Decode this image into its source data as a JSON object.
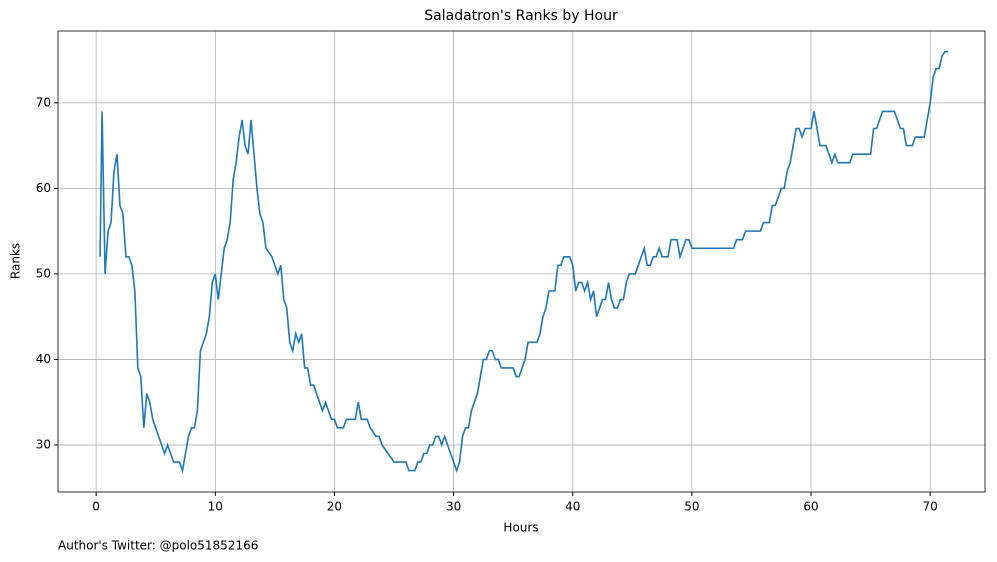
{
  "chart_data": {
    "type": "line",
    "title": "Saladatron's Ranks by Hour",
    "x_label": "Hours",
    "y_label": "Ranks",
    "footnote": "Author's Twitter: @polo51852166",
    "xlim": [
      -3.2,
      74.6
    ],
    "ylim": [
      24.5,
      78.4
    ],
    "xticks": [
      0,
      10,
      20,
      30,
      40,
      50,
      60,
      70
    ],
    "yticks": [
      30,
      40,
      50,
      60,
      70
    ],
    "grid": true,
    "x": [
      0.33,
      0.5,
      0.75,
      1,
      1.25,
      1.5,
      1.75,
      2,
      2.25,
      2.5,
      2.75,
      3,
      3.25,
      3.5,
      3.75,
      4,
      4.25,
      4.5,
      4.75,
      5,
      5.5,
      5.75,
      6,
      6.5,
      7,
      7.25,
      7.5,
      7.75,
      8,
      8.25,
      8.5,
      8.75,
      9,
      9.25,
      9.5,
      9.75,
      10,
      10.25,
      10.5,
      10.75,
      11,
      11.25,
      11.5,
      11.75,
      12,
      12.25,
      12.5,
      12.75,
      13,
      13.25,
      13.5,
      13.75,
      14,
      14.25,
      14.5,
      14.75,
      15,
      15.25,
      15.5,
      15.75,
      16,
      16.25,
      16.5,
      16.75,
      17,
      17.25,
      17.5,
      17.75,
      18,
      18.25,
      18.5,
      18.75,
      19,
      19.25,
      19.5,
      19.75,
      20,
      20.25,
      20.75,
      21,
      21.75,
      22,
      22.25,
      22.75,
      23,
      23.5,
      23.75,
      24,
      24.5,
      25,
      26,
      26.25,
      26.75,
      27,
      27.25,
      27.5,
      27.75,
      28,
      28.25,
      28.5,
      28.75,
      29,
      29.25,
      29.5,
      30,
      30.25,
      30.5,
      30.75,
      31,
      31.25,
      31.5,
      31.75,
      32,
      32.5,
      32.75,
      33,
      33.25,
      33.5,
      33.75,
      34,
      35,
      35.25,
      35.5,
      35.75,
      36,
      36.25,
      36.75,
      37,
      37.25,
      37.5,
      37.75,
      38,
      38.5,
      38.75,
      39,
      39.25,
      39.75,
      40,
      40.25,
      40.5,
      40.75,
      41,
      41.25,
      41.5,
      41.75,
      42,
      42.5,
      42.75,
      43,
      43.25,
      43.5,
      43.75,
      44,
      44.25,
      44.5,
      44.75,
      45.25,
      46,
      46.25,
      46.5,
      46.75,
      47,
      47.25,
      47.5,
      48,
      48.25,
      48.75,
      49,
      49.5,
      49.75,
      50,
      53.5,
      53.75,
      54.25,
      54.5,
      55.75,
      56,
      56.5,
      56.75,
      57,
      57.5,
      57.75,
      58,
      58.25,
      58.5,
      58.75,
      59,
      59.25,
      59.5,
      60,
      60.25,
      60.5,
      60.75,
      61.25,
      61.5,
      61.75,
      62,
      62.25,
      63.25,
      63.5,
      65,
      65.25,
      65.5,
      65.75,
      66,
      67,
      67.5,
      67.75,
      68,
      68.5,
      68.75,
      69.5,
      70,
      70.25,
      70.5,
      70.75,
      71,
      71.25,
      71.5
    ],
    "series": [
      {
        "name": "Ranks",
        "color": "#1f77b4",
        "values": [
          52,
          69,
          50,
          55,
          56,
          62,
          64,
          58,
          57,
          52,
          52,
          51,
          48,
          39,
          38,
          32,
          36,
          35,
          33,
          32,
          30,
          29,
          30,
          28,
          28,
          27,
          29,
          31,
          32,
          32,
          34,
          41,
          42,
          43,
          45,
          49,
          50,
          47,
          50,
          53,
          54,
          56,
          61,
          63,
          66,
          68,
          65,
          64,
          68,
          64,
          60,
          57,
          56,
          53,
          52.5,
          52,
          51,
          50,
          51,
          47,
          46,
          42,
          41,
          43,
          42,
          43,
          39,
          39,
          37,
          37,
          36,
          35,
          34,
          35,
          34,
          33,
          33,
          32,
          32,
          33,
          33,
          35,
          33,
          33,
          32,
          31,
          31,
          30,
          29,
          28,
          28,
          27,
          27,
          28,
          28,
          29,
          29,
          30,
          30,
          31,
          31,
          30,
          31,
          30,
          28,
          27,
          28,
          31,
          32,
          32,
          34,
          35,
          36,
          40,
          40,
          41,
          41,
          40,
          40,
          39,
          39,
          38,
          38,
          39,
          40,
          42,
          42,
          42,
          43,
          45,
          46,
          48,
          48,
          51,
          51,
          52,
          52,
          51,
          48,
          49,
          49,
          48,
          49,
          47,
          48,
          45,
          47,
          47,
          49,
          47,
          46,
          46,
          47,
          47,
          49,
          50,
          50,
          53,
          51,
          51,
          52,
          52,
          53,
          52,
          52,
          54,
          54,
          52,
          54,
          54,
          53,
          53,
          54,
          54,
          55,
          55,
          56,
          56,
          58,
          58,
          60,
          60,
          62,
          63,
          65,
          67,
          67,
          66,
          67,
          67,
          69,
          67,
          65,
          65,
          64,
          63,
          64,
          63,
          63,
          64,
          64,
          67,
          67,
          68,
          69,
          69,
          67,
          67,
          65,
          65,
          66,
          66,
          70,
          73,
          74,
          74,
          75.5,
          76,
          76
        ]
      }
    ]
  }
}
